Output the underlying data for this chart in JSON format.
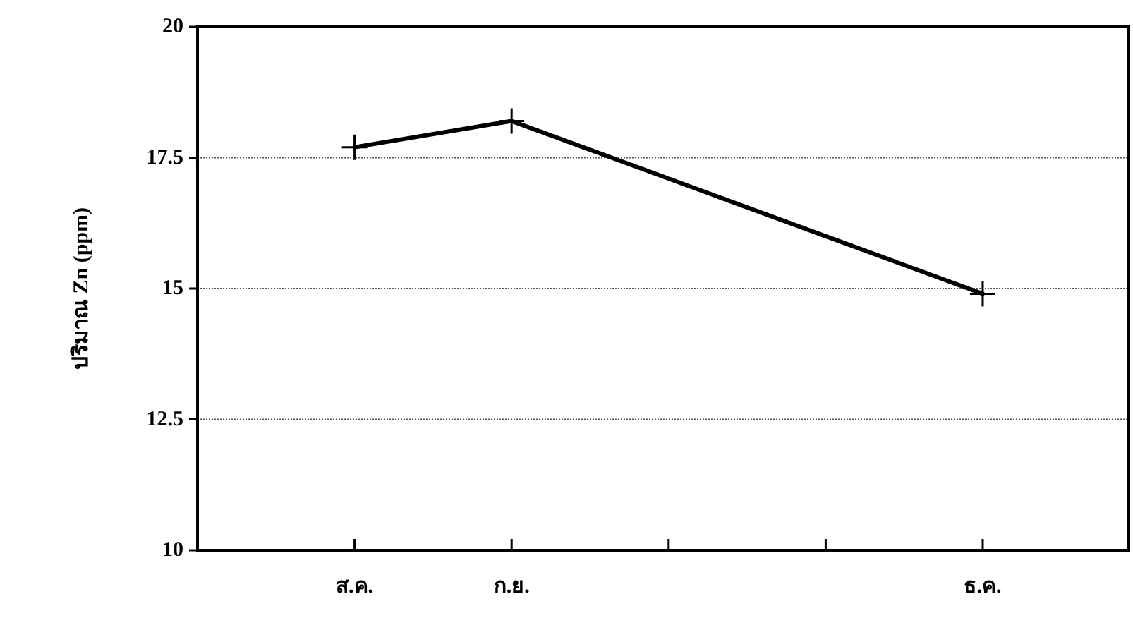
{
  "chart_data": {
    "type": "line",
    "ylabel": "ปริมาณ Zn (ppm)",
    "categories": [
      "ส.ค.",
      "ก.ย.",
      null,
      null,
      "ธ.ค."
    ],
    "series": [
      {
        "color": "#000000",
        "values": [
          17.7,
          18.2,
          null,
          null,
          14.9
        ]
      }
    ],
    "ylim": [
      10,
      20
    ],
    "yticks": [
      10,
      12.5,
      15,
      17.5,
      20
    ],
    "grid": "y",
    "marker": "cross",
    "line_style": "solid"
  }
}
